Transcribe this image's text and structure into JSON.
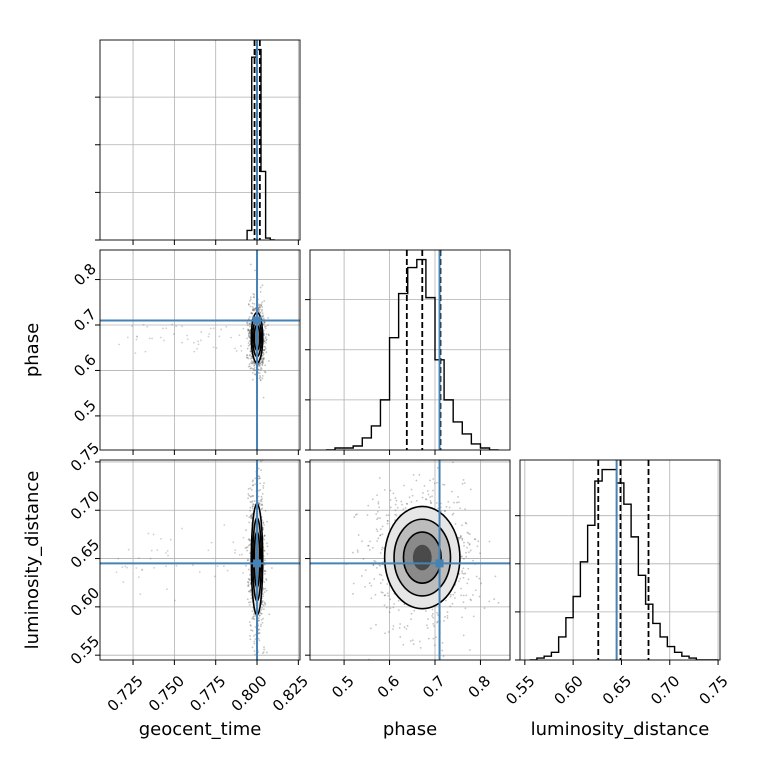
{
  "chart_data": {
    "type": "corner",
    "parameters": [
      "geocent_time",
      "phase",
      "luminosity_distance"
    ],
    "truth_color": "#4682b4",
    "grid": true,
    "truths": {
      "geocent_time": 0.8,
      "phase": 0.71,
      "luminosity_distance": 0.645
    },
    "ranges": {
      "geocent_time": [
        0.705,
        0.826
      ],
      "phase": [
        0.425,
        0.865
      ],
      "luminosity_distance": [
        0.545,
        0.752
      ]
    },
    "ticks": {
      "geocent_time": [
        "0.725",
        "0.750",
        "0.775",
        "0.800",
        "0.825"
      ],
      "phase": [
        "0.5",
        "0.6",
        "0.7",
        "0.8"
      ],
      "luminosity_distance": [
        "0.55",
        "0.60",
        "0.65",
        "0.70",
        "0.75"
      ]
    },
    "histograms": {
      "geocent_time": {
        "edges": [
          0.794,
          0.7968,
          0.7996,
          0.8024,
          0.8052,
          0.808,
          0.8108
        ],
        "counts": [
          0.05,
          0.96,
          1.0,
          0.36,
          0.01,
          0.0
        ]
      },
      "phase": {
        "edges": [
          0.46,
          0.48,
          0.5,
          0.52,
          0.54,
          0.56,
          0.58,
          0.6,
          0.62,
          0.64,
          0.66,
          0.68,
          0.7,
          0.72,
          0.74,
          0.76,
          0.78,
          0.8,
          0.82,
          0.84
        ],
        "counts": [
          0.0,
          0.01,
          0.01,
          0.02,
          0.06,
          0.12,
          0.25,
          0.56,
          0.78,
          0.91,
          0.95,
          0.76,
          0.45,
          0.25,
          0.14,
          0.08,
          0.03,
          0.01,
          0.0
        ]
      },
      "luminosity_distance": {
        "edges": [
          0.555,
          0.5625,
          0.57,
          0.5775,
          0.585,
          0.5925,
          0.6,
          0.6075,
          0.615,
          0.6225,
          0.63,
          0.6375,
          0.645,
          0.6525,
          0.66,
          0.6675,
          0.675,
          0.6825,
          0.69,
          0.6975,
          0.705,
          0.7125,
          0.72,
          0.7275,
          0.735,
          0.7425,
          0.75
        ],
        "counts": [
          0.0,
          0.01,
          0.02,
          0.04,
          0.12,
          0.22,
          0.33,
          0.51,
          0.7,
          0.93,
          0.99,
          0.99,
          0.92,
          0.81,
          0.64,
          0.44,
          0.29,
          0.19,
          0.12,
          0.07,
          0.04,
          0.02,
          0.01,
          0.0,
          0.0,
          0.0
        ]
      }
    },
    "quantiles": {
      "geocent_time": [
        0.7985,
        0.8,
        0.8017
      ],
      "phase": [
        0.638,
        0.672,
        0.712
      ],
      "luminosity_distance": [
        0.626,
        0.649,
        0.678
      ]
    },
    "pair_summaries": [
      {
        "x": "geocent_time",
        "y": "phase",
        "center": [
          0.8,
          0.672
        ],
        "spread": [
          0.0015,
          0.024
        ],
        "contour_levels_sigma": [
          0.5,
          1.0,
          1.5,
          2.0
        ]
      },
      {
        "x": "geocent_time",
        "y": "luminosity_distance",
        "center": [
          0.8,
          0.649
        ],
        "spread": [
          0.0015,
          0.025
        ],
        "contour_levels_sigma": [
          0.5,
          1.0,
          1.5,
          2.0
        ]
      },
      {
        "x": "phase",
        "y": "luminosity_distance",
        "center": [
          0.672,
          0.651
        ],
        "spread": [
          0.036,
          0.023
        ],
        "contour_levels_sigma": [
          0.5,
          1.0,
          1.5,
          2.0
        ]
      }
    ]
  }
}
